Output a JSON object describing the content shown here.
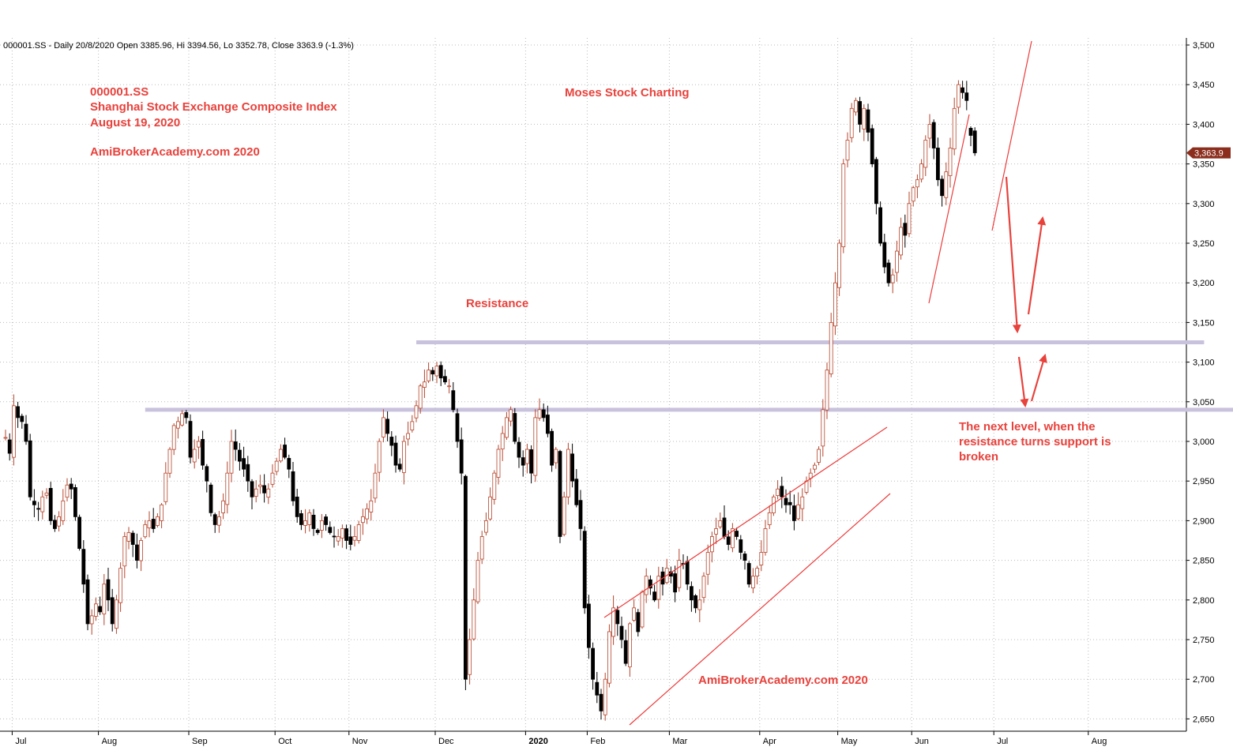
{
  "chart_data": {
    "type": "candlestick",
    "header": "000001.SS - Daily 20/8/2020 Open 3385.96, Hi 3394.56, Lo 3352.78, Close 3363.9 (-1.3%)",
    "last_price_label": "3,363.9",
    "last_price": 3363.9,
    "ylim": [
      2630,
      3510
    ],
    "y_ticks": [
      {
        "value": 2650,
        "label": "2,650"
      },
      {
        "value": 2700,
        "label": "2,700"
      },
      {
        "value": 2750,
        "label": "2,750"
      },
      {
        "value": 2800,
        "label": "2,800"
      },
      {
        "value": 2850,
        "label": "2,850"
      },
      {
        "value": 2900,
        "label": "2,900"
      },
      {
        "value": 2950,
        "label": "2,950"
      },
      {
        "value": 3000,
        "label": "3,000"
      },
      {
        "value": 3050,
        "label": "3,050"
      },
      {
        "value": 3100,
        "label": "3,100"
      },
      {
        "value": 3150,
        "label": "3,150"
      },
      {
        "value": 3200,
        "label": "3,200"
      },
      {
        "value": 3250,
        "label": "3,250"
      },
      {
        "value": 3300,
        "label": "3,300"
      },
      {
        "value": 3350,
        "label": "3,350"
      },
      {
        "value": 3400,
        "label": "3,400"
      },
      {
        "value": 3450,
        "label": "3,450"
      },
      {
        "value": 3500,
        "label": "3,500"
      }
    ],
    "x_months": [
      {
        "label": "Jul",
        "bar": 2,
        "bold": false
      },
      {
        "label": "Aug",
        "bar": 23,
        "bold": false
      },
      {
        "label": "Sep",
        "bar": 45,
        "bold": false
      },
      {
        "label": "Oct",
        "bar": 66,
        "bold": false
      },
      {
        "label": "Nov",
        "bar": 84,
        "bold": false
      },
      {
        "label": "Dec",
        "bar": 105,
        "bold": false
      },
      {
        "label": "2020",
        "bar": 127,
        "bold": true
      },
      {
        "label": "Feb",
        "bar": 142,
        "bold": false
      },
      {
        "label": "Mar",
        "bar": 162,
        "bold": false
      },
      {
        "label": "Apr",
        "bar": 184,
        "bold": false
      },
      {
        "label": "May",
        "bar": 203,
        "bold": false
      },
      {
        "label": "Jun",
        "bar": 221,
        "bold": false
      },
      {
        "label": "Jul",
        "bar": 241,
        "bold": false
      },
      {
        "label": "Aug",
        "bar": 264,
        "bold": false
      }
    ],
    "x_range": [
      0,
      335
    ],
    "closes": [
      3005,
      2985,
      3045,
      3030,
      3025,
      3000,
      2930,
      2920,
      2915,
      2930,
      2935,
      2900,
      2890,
      2905,
      2925,
      2945,
      2940,
      2905,
      2865,
      2820,
      2770,
      2780,
      2795,
      2785,
      2820,
      2800,
      2770,
      2800,
      2840,
      2880,
      2885,
      2870,
      2850,
      2875,
      2895,
      2900,
      2890,
      2905,
      2920,
      2960,
      2990,
      3020,
      3025,
      3035,
      3030,
      2980,
      2990,
      3000,
      2970,
      2950,
      2910,
      2895,
      2905,
      2925,
      2960,
      3000,
      2990,
      2975,
      2965,
      2950,
      2930,
      2940,
      2945,
      2935,
      2940,
      2960,
      2975,
      2990,
      2980,
      2965,
      2925,
      2905,
      2895,
      2900,
      2910,
      2890,
      2885,
      2900,
      2895,
      2885,
      2880,
      2880,
      2890,
      2875,
      2870,
      2880,
      2895,
      2905,
      2915,
      2925,
      2960,
      3000,
      3030,
      3010,
      2995,
      2970,
      2965,
      3000,
      3010,
      3025,
      3045,
      3070,
      3075,
      3090,
      3085,
      3095,
      3080,
      3075,
      3070,
      3040,
      3000,
      2960,
      2700,
      2750,
      2800,
      2850,
      2880,
      2900,
      2930,
      2960,
      2990,
      3010,
      3030,
      3040,
      3000,
      2980,
      2970,
      2990,
      2960,
      3030,
      3040,
      3030,
      3010,
      2970,
      2990,
      2880,
      2930,
      2990,
      2950,
      2920,
      2890,
      2790,
      2740,
      2700,
      2680,
      2660,
      2700,
      2760,
      2790,
      2770,
      2750,
      2720,
      2770,
      2790,
      2760,
      2810,
      2830,
      2815,
      2800,
      2830,
      2820,
      2840,
      2830,
      2810,
      2850,
      2845,
      2820,
      2800,
      2790,
      2800,
      2830,
      2860,
      2880,
      2890,
      2900,
      2880,
      2870,
      2890,
      2880,
      2860,
      2850,
      2820,
      2830,
      2840,
      2860,
      2890,
      2910,
      2930,
      2940,
      2930,
      2920,
      2920,
      2900,
      2920,
      2930,
      2950,
      2960,
      2970,
      2990,
      3040,
      3090,
      3150,
      3200,
      3250,
      3350,
      3380,
      3420,
      3430,
      3400,
      3420,
      3390,
      3350,
      3300,
      3250,
      3220,
      3200,
      3210,
      3240,
      3270,
      3260,
      3300,
      3320,
      3330,
      3350,
      3380,
      3400,
      3370,
      3330,
      3310,
      3340,
      3370,
      3420,
      3450,
      3440,
      3430,
      3386,
      3364
    ],
    "resistance_levels": [
      {
        "name": "upper",
        "value": 3125
      },
      {
        "name": "lower",
        "value": 3040
      }
    ],
    "annotations": {
      "title_lines": [
        "000001.SS",
        "Shanghai Stock Exchange Composite Index",
        "August 19, 2020"
      ],
      "site_top": "AmiBrokerAcademy.com 2020",
      "brand": "Moses Stock Charting",
      "resistance": "Resistance",
      "note_lines": [
        "The next level, when the",
        "resistance turns support is",
        "broken"
      ],
      "site_bottom": "AmiBrokerAcademy.com  2020"
    },
    "colors": {
      "bull_body": "#ffffff",
      "bull_outline": "#b5452c",
      "bear_body": "#000000",
      "trendline": "#ee3b3b",
      "arrow": "#e8423c",
      "resistance_line": "#c9c2dc",
      "annotation_text": "#e8423c",
      "last_price_tag": "#8b2e1e",
      "grid": "#bbbbbb"
    },
    "grid": true,
    "legend": "none"
  }
}
